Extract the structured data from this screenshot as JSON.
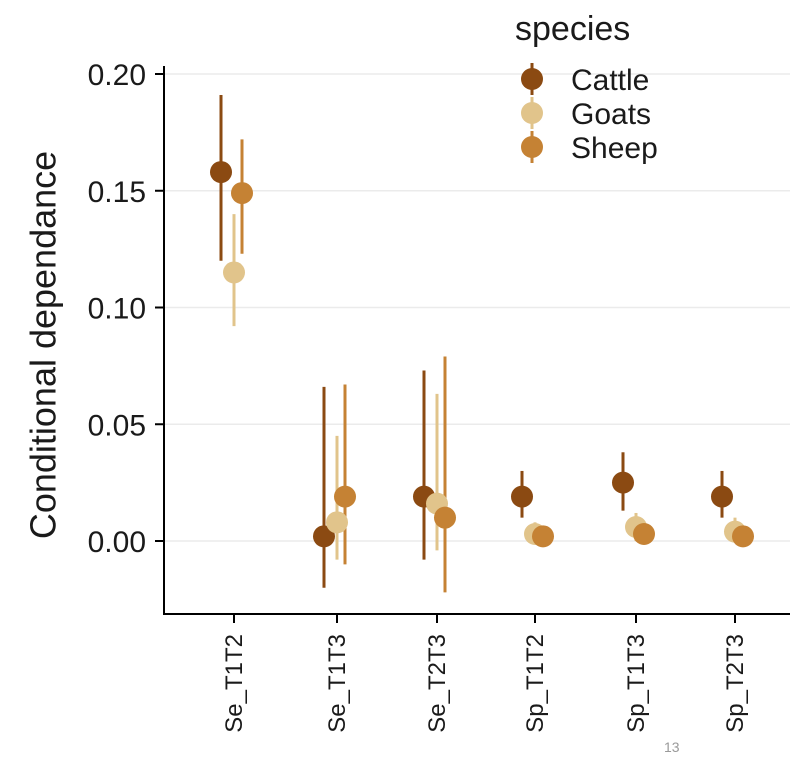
{
  "chart_data": {
    "type": "scatter",
    "title": "",
    "xlabel": "",
    "ylabel": "Conditional dependance",
    "categories": [
      "Se_T1T2",
      "Se_T1T3",
      "Se_T2T3",
      "Sp_T1T2",
      "Sp_T1T3",
      "Sp_T2T3"
    ],
    "yticks": [
      "0.00",
      "0.05",
      "0.10",
      "0.15",
      "0.20"
    ],
    "ylim": [
      -0.032,
      0.203
    ],
    "grid": "horizontal-major",
    "legend": {
      "title": "species",
      "position": "top-right"
    },
    "series": [
      {
        "name": "Cattle",
        "color": "#8B4A12",
        "values": [
          0.158,
          0.002,
          0.019,
          0.019,
          0.025,
          0.019
        ],
        "lower": [
          0.12,
          -0.02,
          -0.008,
          0.01,
          0.013,
          0.01
        ],
        "upper": [
          0.191,
          0.066,
          0.073,
          0.03,
          0.038,
          0.03
        ]
      },
      {
        "name": "Goats",
        "color": "#E1C48B",
        "values": [
          0.115,
          0.008,
          0.016,
          0.003,
          0.006,
          0.004
        ],
        "lower": [
          0.092,
          -0.008,
          -0.004,
          -0.001,
          0.0,
          0.0
        ],
        "upper": [
          0.14,
          0.045,
          0.063,
          0.008,
          0.012,
          0.01
        ]
      },
      {
        "name": "Sheep",
        "color": "#C58234",
        "values": [
          0.149,
          0.019,
          0.01,
          0.002,
          0.003,
          0.002
        ],
        "lower": [
          0.123,
          -0.01,
          -0.022,
          -0.001,
          -0.001,
          -0.001
        ],
        "upper": [
          0.172,
          0.067,
          0.079,
          0.006,
          0.007,
          0.006
        ]
      }
    ]
  },
  "page_number": "13"
}
